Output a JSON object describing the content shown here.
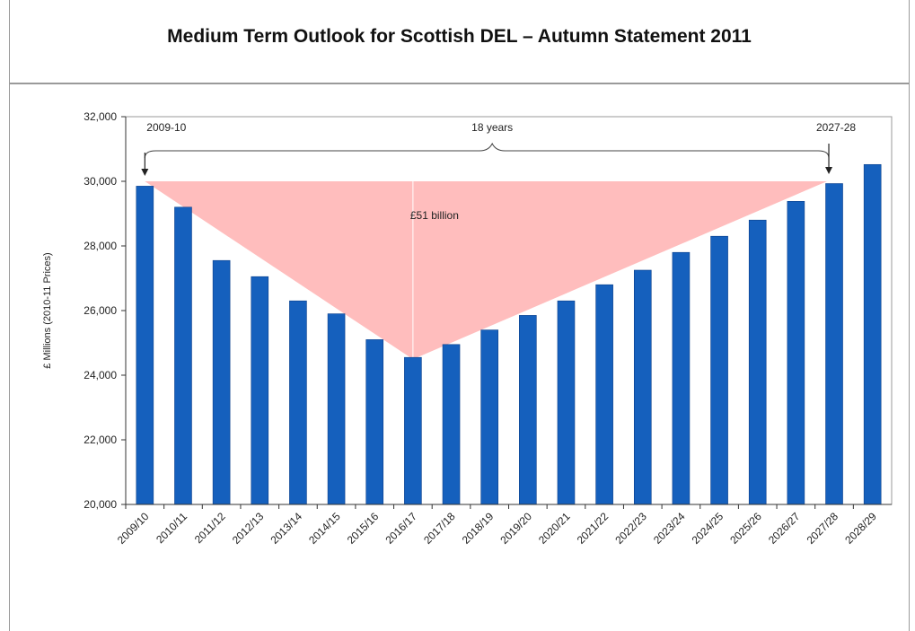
{
  "chart_data": {
    "type": "bar",
    "title": "Medium Term Outlook for Scottish DEL –  Autumn Statement 2011",
    "ylabel": "£ Millions (2010-11 Prices)",
    "ylim": [
      20000,
      32000
    ],
    "yticks": [
      "20,000",
      "22,000",
      "24,000",
      "26,000",
      "28,000",
      "30,000",
      "32,000"
    ],
    "categories": [
      "2009/10",
      "2010/11",
      "2011/12",
      "2012/13",
      "2013/14",
      "2014/15",
      "2015/16",
      "2016/17",
      "2017/18",
      "2018/19",
      "2019/20",
      "2020/21",
      "2021/22",
      "2022/23",
      "2023/24",
      "2024/25",
      "2025/26",
      "2026/27",
      "2027/28",
      "2028/29"
    ],
    "values": [
      29850,
      29200,
      27550,
      27050,
      26300,
      25900,
      25100,
      24550,
      24950,
      25400,
      25850,
      26300,
      26800,
      27250,
      27800,
      28300,
      28800,
      29380,
      29930,
      30520
    ],
    "bar_color": "#1560bd",
    "shade_color": "#ffbdbd",
    "grid": false,
    "annotations": {
      "start_label": "2009-10",
      "end_label": "2027-28",
      "span_label": "18 years",
      "area_label": "£51  billion",
      "shade_level": 30000,
      "shade_start_index": 0,
      "shade_min_index": 7,
      "shade_end_index": 18
    }
  }
}
